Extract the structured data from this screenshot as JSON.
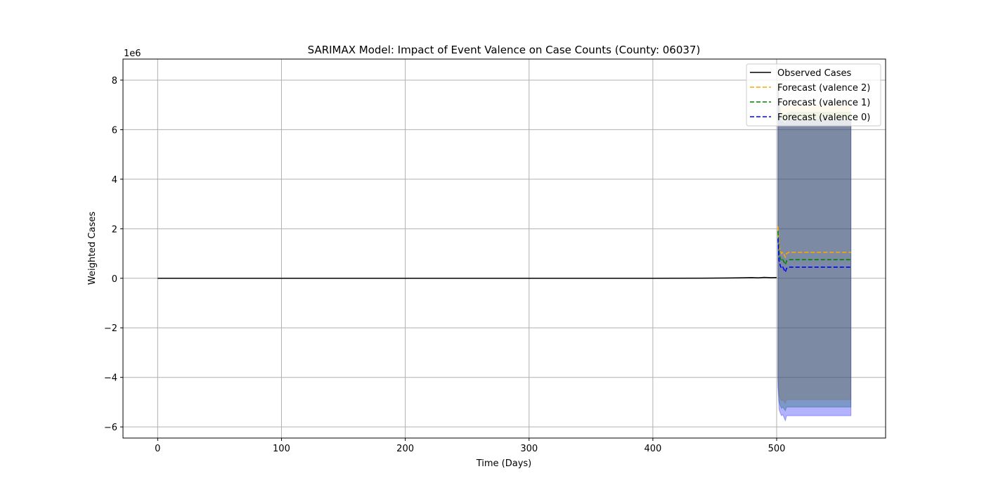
{
  "chart_data": {
    "type": "line",
    "title": "SARIMAX Model: Impact of Event Valence on Case Counts (County: 06037)",
    "xlabel": "Time (Days)",
    "ylabel": "Weighted Cases",
    "y_offset_label": "1e6",
    "y_scale": 1000000,
    "xlim": [
      -28,
      588
    ],
    "ylim": [
      -6450000,
      8850000
    ],
    "x_ticks": [
      0,
      100,
      200,
      300,
      400,
      500
    ],
    "x_tick_labels": [
      "0",
      "100",
      "200",
      "300",
      "400",
      "500"
    ],
    "y_ticks": [
      -6000000,
      -4000000,
      -2000000,
      0,
      2000000,
      4000000,
      6000000,
      8000000
    ],
    "y_tick_labels": [
      "−6",
      "−4",
      "−2",
      "0",
      "2",
      "4",
      "6",
      "8"
    ],
    "grid": true,
    "legend_position": "top-right",
    "series": [
      {
        "name": "Observed Cases",
        "color": "#000000",
        "style": "solid",
        "x": [
          0,
          100,
          200,
          300,
          400,
          440,
          460,
          470,
          480,
          485,
          490,
          495,
          500
        ],
        "y": [
          0,
          0,
          0,
          0,
          2000,
          5000,
          10000,
          20000,
          30000,
          20000,
          35000,
          25000,
          30000
        ]
      },
      {
        "name": "Forecast (valence 2)",
        "color": "#ffa500",
        "style": "dashed",
        "x": [
          501,
          502,
          503,
          504,
          505,
          507,
          508,
          510,
          520,
          540,
          560
        ],
        "y": [
          2100000,
          1300000,
          1100000,
          1000000,
          1050000,
          850000,
          1000000,
          1050000,
          1050000,
          1050000,
          1050000
        ],
        "ci_upper": [
          8100000,
          7300000,
          7050000,
          6900000,
          6950000,
          6800000,
          6950000,
          7000000,
          7000000,
          7000000,
          7000000
        ],
        "ci_lower": [
          -3900000,
          -4700000,
          -4850000,
          -4950000,
          -4900000,
          -5050000,
          -4900000,
          -4900000,
          -4900000,
          -4900000,
          -4900000
        ]
      },
      {
        "name": "Forecast (valence 1)",
        "color": "#008000",
        "style": "dashed",
        "x": [
          501,
          502,
          503,
          504,
          505,
          507,
          508,
          510,
          520,
          540,
          560
        ],
        "y": [
          1900000,
          1000000,
          800000,
          700000,
          750000,
          550000,
          700000,
          750000,
          750000,
          750000,
          750000
        ],
        "ci_upper": [
          7900000,
          7000000,
          6750000,
          6600000,
          6650000,
          6500000,
          6650000,
          6700000,
          6700000,
          6700000,
          6700000
        ],
        "ci_lower": [
          -4100000,
          -5000000,
          -5150000,
          -5250000,
          -5200000,
          -5350000,
          -5200000,
          -5200000,
          -5200000,
          -5200000,
          -5200000
        ]
      },
      {
        "name": "Forecast (valence 0)",
        "color": "#0000ff",
        "style": "dashed",
        "x": [
          501,
          502,
          503,
          504,
          505,
          507,
          508,
          510,
          520,
          540,
          560
        ],
        "y": [
          1600000,
          700000,
          500000,
          400000,
          450000,
          250000,
          400000,
          450000,
          450000,
          450000,
          450000
        ],
        "ci_upper": [
          7600000,
          6700000,
          6450000,
          6300000,
          6350000,
          6200000,
          6350000,
          6400000,
          6400000,
          6400000,
          6400000
        ],
        "ci_lower": [
          -4400000,
          -5300000,
          -5450000,
          -5550000,
          -5500000,
          -5750000,
          -5550000,
          -5550000,
          -5550000,
          -5550000,
          -5550000
        ]
      }
    ]
  }
}
